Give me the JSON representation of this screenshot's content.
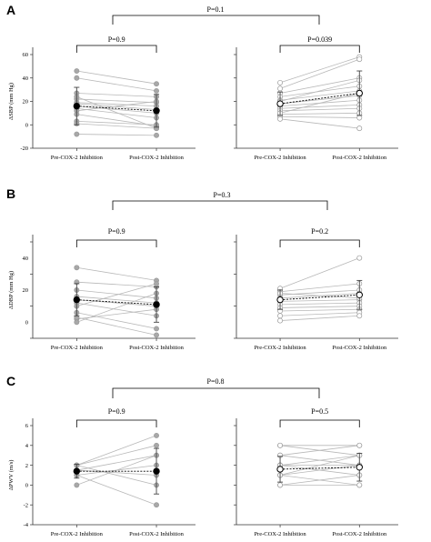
{
  "figure": {
    "panels": [
      {
        "label": "A",
        "comparison_p": "P=0.1",
        "subplots": [
          {
            "p_value": "P=0.9",
            "ylabel": "ΔSBP (mm Hg)",
            "yticks": [
              "60",
              "40",
              "20",
              "0",
              "-20"
            ],
            "filled": true,
            "has_yaxis": true
          },
          {
            "p_value": "P=0.039",
            "ylabel": "",
            "yticks": [],
            "filled": false,
            "has_yaxis": false
          }
        ]
      },
      {
        "label": "B",
        "comparison_p": "P=0.3",
        "subplots": [
          {
            "p_value": "P=0.9",
            "ylabel": "ΔDBP (mm Hg)",
            "yticks": [
              "40",
              "20",
              "0"
            ],
            "filled": true,
            "has_yaxis": true
          },
          {
            "p_value": "P=0.2",
            "ylabel": "",
            "yticks": [],
            "filled": false,
            "has_yaxis": false
          }
        ]
      },
      {
        "label": "C",
        "comparison_p": "P=0.8",
        "subplots": [
          {
            "p_value": "P=0.9",
            "ylabel": "ΔPWV (m/s)",
            "yticks": [
              "6",
              "4",
              "2",
              "0",
              "-2",
              "-4"
            ],
            "filled": true,
            "has_yaxis": true
          },
          {
            "p_value": "P=0.5",
            "ylabel": "",
            "yticks": [],
            "filled": false,
            "has_yaxis": false
          }
        ]
      }
    ],
    "x_categories": [
      "Pre-COX-2 Inhibition",
      "Post-COX-2 Inhibition"
    ]
  },
  "chart_data": [
    {
      "type": "line",
      "panel": "A",
      "group": "left",
      "categories": [
        "Pre-COX-2 Inhibition",
        "Post-COX-2 Inhibition"
      ],
      "title": "",
      "xlabel": "",
      "ylabel": "ΔSBP (mm Hg)",
      "ylim": [
        -20,
        60
      ],
      "p_value": "P=0.9",
      "individuals": [
        [
          46,
          35
        ],
        [
          40,
          29
        ],
        [
          27,
          24
        ],
        [
          22,
          19
        ],
        [
          19,
          16
        ],
        [
          18,
          13
        ],
        [
          16,
          10
        ],
        [
          14,
          6
        ],
        [
          12,
          20
        ],
        [
          9,
          -1
        ],
        [
          3,
          0
        ],
        [
          1,
          -3
        ],
        [
          -8,
          -9
        ],
        [
          24,
          -3
        ]
      ],
      "mean": [
        16,
        12
      ],
      "sd": [
        16,
        14
      ]
    },
    {
      "type": "line",
      "panel": "A",
      "group": "right",
      "categories": [
        "Pre-COX-2 Inhibition",
        "Post-COX-2 Inhibition"
      ],
      "title": "",
      "xlabel": "",
      "ylabel": "",
      "ylim": [
        -20,
        60
      ],
      "p_value": "P=0.039",
      "individuals": [
        [
          36,
          58
        ],
        [
          31,
          56
        ],
        [
          27,
          40
        ],
        [
          24,
          33
        ],
        [
          21,
          29
        ],
        [
          18,
          25
        ],
        [
          16,
          21
        ],
        [
          14,
          17
        ],
        [
          12,
          14
        ],
        [
          9,
          10
        ],
        [
          7,
          6
        ],
        [
          5,
          -3
        ],
        [
          10,
          27
        ],
        [
          20,
          38
        ]
      ],
      "mean": [
        18,
        27
      ],
      "sd": [
        10,
        19
      ]
    },
    {
      "type": "line",
      "panel": "B",
      "group": "left",
      "categories": [
        "Pre-COX-2 Inhibition",
        "Post-COX-2 Inhibition"
      ],
      "title": "",
      "xlabel": "",
      "ylabel": "ΔDBP (mm Hg)",
      "ylim": [
        -10,
        50
      ],
      "p_value": "P=0.9",
      "individuals": [
        [
          34,
          26
        ],
        [
          25,
          22
        ],
        [
          20,
          15
        ],
        [
          16,
          12
        ],
        [
          14,
          10
        ],
        [
          12,
          4
        ],
        [
          10,
          24
        ],
        [
          6,
          -4
        ],
        [
          2,
          8
        ],
        [
          0,
          18
        ],
        [
          3,
          -8
        ]
      ],
      "mean": [
        14,
        11
      ],
      "sd": [
        10,
        11
      ]
    },
    {
      "type": "line",
      "panel": "B",
      "group": "right",
      "categories": [
        "Pre-COX-2 Inhibition",
        "Post-COX-2 Inhibition"
      ],
      "title": "",
      "xlabel": "",
      "ylabel": "",
      "ylim": [
        -10,
        50
      ],
      "p_value": "P=0.2",
      "individuals": [
        [
          21,
          40
        ],
        [
          19,
          24
        ],
        [
          17,
          20
        ],
        [
          15,
          18
        ],
        [
          13,
          14
        ],
        [
          11,
          12
        ],
        [
          9,
          10
        ],
        [
          7,
          8
        ],
        [
          4,
          6
        ],
        [
          1,
          4
        ],
        [
          18,
          15
        ]
      ],
      "mean": [
        14,
        17
      ],
      "sd": [
        6,
        9
      ]
    },
    {
      "type": "line",
      "panel": "C",
      "group": "left",
      "categories": [
        "Pre-COX-2 Inhibition",
        "Post-COX-2 Inhibition"
      ],
      "title": "",
      "xlabel": "",
      "ylabel": "ΔPWV (m/s)",
      "ylim": [
        -4,
        6
      ],
      "p_value": "P=0.9",
      "individuals": [
        [
          2,
          5
        ],
        [
          2,
          4
        ],
        [
          1.5,
          3
        ],
        [
          1,
          2
        ],
        [
          1.5,
          1
        ],
        [
          2,
          0
        ],
        [
          1,
          -2
        ],
        [
          0,
          3
        ]
      ],
      "mean": [
        1.4,
        1.4
      ],
      "sd": [
        0.7,
        2.3
      ]
    },
    {
      "type": "line",
      "panel": "C",
      "group": "right",
      "categories": [
        "Pre-COX-2 Inhibition",
        "Post-COX-2 Inhibition"
      ],
      "title": "",
      "xlabel": "",
      "ylabel": "",
      "ylim": [
        -4,
        6
      ],
      "p_value": "P=0.5",
      "individuals": [
        [
          4,
          4
        ],
        [
          4,
          3
        ],
        [
          3,
          4
        ],
        [
          3,
          2
        ],
        [
          2,
          3
        ],
        [
          2,
          1
        ],
        [
          1,
          2
        ],
        [
          1,
          0
        ],
        [
          0,
          1
        ],
        [
          0,
          0
        ],
        [
          2,
          2
        ],
        [
          1,
          3
        ]
      ],
      "mean": [
        1.6,
        1.8
      ],
      "sd": [
        1.3,
        1.4
      ]
    }
  ]
}
